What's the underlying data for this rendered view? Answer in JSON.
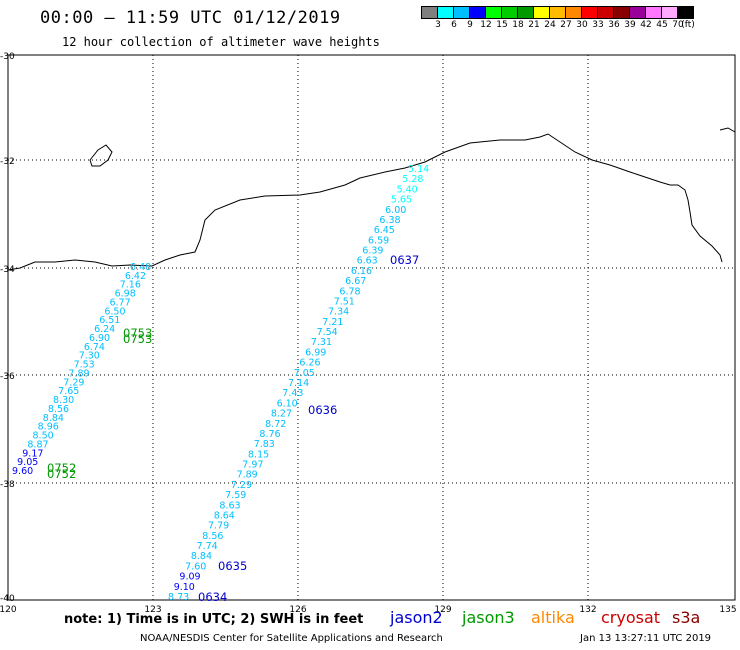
{
  "title": "00:00 – 11:59 UTC 01/12/2019",
  "subtitle": "12 hour collection of altimeter wave heights",
  "legend": {
    "colors": [
      "#7f7f7f",
      "#00ffff",
      "#00bfff",
      "#0000ff",
      "#00ff00",
      "#00cc00",
      "#009900",
      "#ffff00",
      "#ffbb00",
      "#ff8800",
      "#ff0000",
      "#cc0000",
      "#880000",
      "#990099",
      "#ff77ff",
      "#ffaaff",
      "#000000"
    ],
    "labels": [
      "3",
      "6",
      "9",
      "12",
      "15",
      "18",
      "21",
      "24",
      "27",
      "30",
      "33",
      "36",
      "39",
      "42",
      "45",
      "70",
      "(ft)"
    ]
  },
  "axes": {
    "lat_ticks": [
      "-30",
      "-32",
      "-34",
      "-36",
      "-38",
      "-40"
    ],
    "lon_ticks": [
      "120",
      "123",
      "126",
      "129",
      "132",
      "135"
    ]
  },
  "tracks": [
    {
      "satellite": "jason2",
      "time_labels": [
        "0637",
        "0636",
        "0635",
        "0634"
      ],
      "values": [
        "5.14",
        "5.28",
        "5.40",
        "5.65",
        "6.00",
        "6.38",
        "6.45",
        "6.59",
        "6.39",
        "6.63",
        "6.16",
        "6.67",
        "6.78",
        "7.51",
        "7.34",
        "7.21",
        "7.54",
        "7.31",
        "6.99",
        "6.26",
        "7.05",
        "7.14",
        "7.43",
        "6.10",
        "8.27",
        "8.72",
        "8.76",
        "7.83",
        "8.15",
        "7.97",
        "7.89",
        "7.29",
        "7.59",
        "8.63",
        "8.64",
        "7.79",
        "8.56",
        "7.74",
        "8.84",
        "7.60",
        "9.09",
        "9.10",
        "8.73"
      ]
    },
    {
      "satellite": "jason3",
      "time_labels": [
        "0753",
        "0753",
        "0752",
        "0752"
      ],
      "values": [
        "6.48",
        "6.42",
        "7.16",
        "6.98",
        "6.77",
        "6.50",
        "6.51",
        "6.24",
        "6.90",
        "6.74",
        "7.30",
        "7.53",
        "7.89",
        "7.29",
        "7.65",
        "8.30",
        "8.56",
        "8.84",
        "8.96",
        "8.50",
        "8.87",
        "9.17",
        "9.05",
        "9.60"
      ]
    }
  ],
  "note": "note:  1) Time is in UTC;  2) SWH is in feet",
  "satellites": [
    {
      "name": "jason2",
      "color": "#0000cc"
    },
    {
      "name": "jason3",
      "color": "#009900"
    },
    {
      "name": "altika",
      "color": "#ff8800"
    },
    {
      "name": "cryosat",
      "color": "#cc0000"
    },
    {
      "name": "s3a",
      "color": "#880000"
    }
  ],
  "footer": "NOAA/NESDIS Center for Satellite Applications and Research",
  "footer_time": "Jan 13 13:27:11 UTC 2019"
}
